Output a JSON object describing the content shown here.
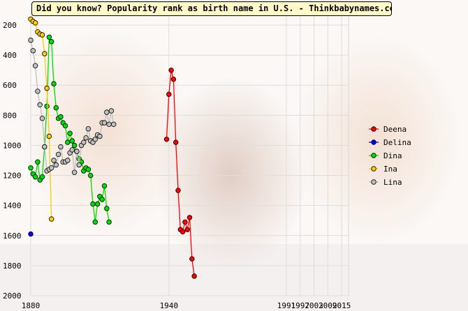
{
  "title": "Did you know? Popularity rank as birth name in U.S. - Thinkbabynames.com",
  "chart_data": {
    "type": "line",
    "title": "Did you know? Popularity rank as birth name in U.S. - Thinkbabynames.com",
    "xlabel": "",
    "ylabel": "",
    "xlim": [
      1880,
      2018
    ],
    "ylim": [
      2000,
      135
    ],
    "y_inverted": true,
    "x_ticks": [
      1880,
      1940,
      1991,
      1997,
      2003,
      2009,
      2015
    ],
    "x_tick_labels": [
      "1880",
      "1940",
      "1991",
      "1997",
      "2003",
      "2009",
      "2015"
    ],
    "y_ticks": [
      200,
      400,
      600,
      800,
      1000,
      1200,
      1400,
      1600,
      1800,
      2000
    ],
    "y_tick_labels": [
      "200",
      "400",
      "600",
      "800",
      "1000",
      "1200",
      "1400",
      "1600",
      "1800",
      "2000"
    ],
    "grid": true,
    "legend_position": "right",
    "series": [
      {
        "name": "Deena",
        "color": "#ff0000",
        "x": [
          1939,
          1940,
          1941,
          1942,
          1943,
          1944,
          1945,
          1946,
          1947,
          1948,
          1949,
          1950,
          1951
        ],
        "y": [
          960,
          660,
          500,
          560,
          980,
          1300,
          1560,
          1575,
          1510,
          1560,
          1480,
          1755,
          1870
        ]
      },
      {
        "name": "Delina",
        "color": "#0000ff",
        "x": [
          1880
        ],
        "y": [
          1590
        ]
      },
      {
        "name": "Dina",
        "color": "#00dd00",
        "x": [
          1880,
          1881,
          1882,
          1883,
          1884,
          1885,
          1886,
          1887,
          1888,
          1889,
          1890,
          1891,
          1892,
          1893,
          1894,
          1895,
          1896,
          1897,
          1898,
          1899,
          1900,
          1901,
          1902,
          1903,
          1904,
          1905,
          1906,
          1907,
          1908,
          1909,
          1910,
          1911,
          1912,
          1913,
          1914
        ],
        "y": [
          1150,
          1190,
          1210,
          1110,
          1230,
          1210,
          1010,
          740,
          280,
          310,
          590,
          750,
          820,
          810,
          850,
          870,
          980,
          920,
          970,
          1000,
          1040,
          1090,
          1110,
          1170,
          1150,
          1160,
          1200,
          1390,
          1510,
          1390,
          1340,
          1360,
          1270,
          1420,
          1510
        ]
      },
      {
        "name": "Ina",
        "color": "#ffcc00",
        "x": [
          1880,
          1881,
          1882,
          1883,
          1884,
          1885,
          1886,
          1887,
          1888,
          1889
        ],
        "y": [
          160,
          175,
          185,
          245,
          260,
          265,
          390,
          620,
          940,
          1490
        ]
      },
      {
        "name": "Lina",
        "color": "#c0c0c0",
        "x": [
          1880,
          1881,
          1882,
          1883,
          1884,
          1885,
          1886,
          1887,
          1888,
          1889,
          1890,
          1891,
          1892,
          1893,
          1894,
          1895,
          1896,
          1897,
          1898,
          1899,
          1900,
          1901,
          1902,
          1903,
          1904,
          1905,
          1906,
          1907,
          1908,
          1909,
          1910,
          1911,
          1912,
          1913,
          1914,
          1915,
          1916
        ],
        "y": [
          300,
          370,
          470,
          640,
          730,
          820,
          1010,
          1170,
          1160,
          1150,
          1100,
          1130,
          1060,
          1010,
          1110,
          1110,
          1100,
          1050,
          1030,
          1180,
          1040,
          1130,
          1000,
          980,
          950,
          890,
          970,
          980,
          960,
          930,
          940,
          850,
          850,
          780,
          860,
          770,
          860
        ]
      }
    ]
  }
}
